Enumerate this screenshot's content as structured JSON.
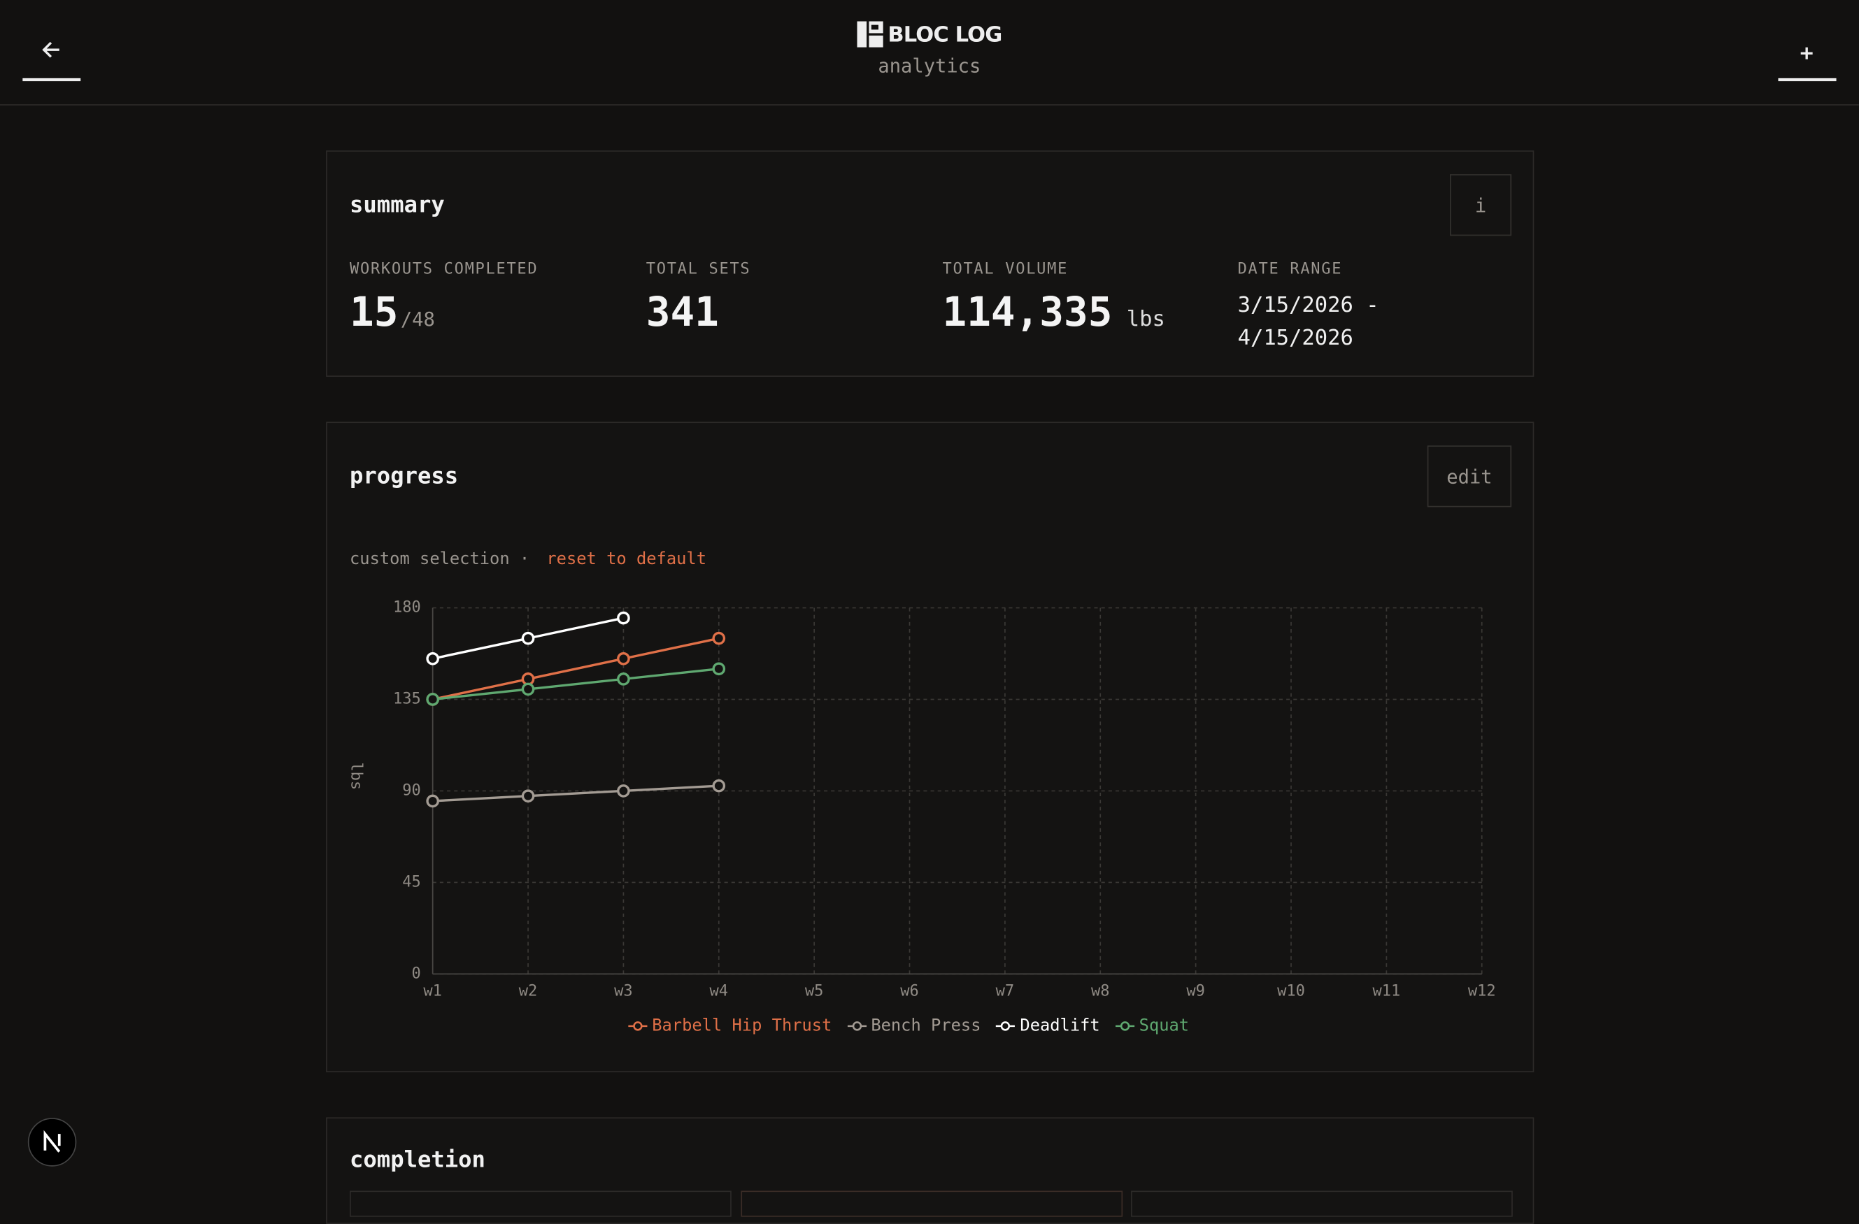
{
  "header": {
    "title": "BLOC LOG",
    "subtitle": "analytics"
  },
  "summary": {
    "title": "summary",
    "info": "i",
    "stats": [
      {
        "label": "WORKOUTS COMPLETED",
        "value": "15",
        "suffix": "/48"
      },
      {
        "label": "TOTAL SETS",
        "value": "341"
      },
      {
        "label": "TOTAL VOLUME",
        "value": "114,335",
        "suffix": "lbs"
      },
      {
        "label": "DATE RANGE",
        "value": "3/15/2026 - 4/15/2026"
      }
    ]
  },
  "progress": {
    "title": "progress",
    "edit": "edit",
    "selection": "custom selection ·",
    "reset": "reset to default"
  },
  "completion": {
    "title": "completion"
  },
  "chart_data": {
    "type": "line",
    "y_label": "lbs",
    "categories": [
      "w1",
      "w2",
      "w3",
      "w4",
      "w5",
      "w6",
      "w7",
      "w8",
      "w9",
      "w10",
      "w11",
      "w12"
    ],
    "ylim": [
      0,
      180
    ],
    "yticks": [
      0,
      45,
      90,
      135,
      180
    ],
    "grid": true,
    "series": [
      {
        "name": "Barbell Hip Thrust",
        "color": "#e07048",
        "values": [
          135,
          145,
          155,
          165,
          null,
          null,
          null,
          null,
          null,
          null,
          null,
          null
        ]
      },
      {
        "name": "Bench Press",
        "color": "#a39b93",
        "values": [
          85,
          87.5,
          90,
          92.5,
          null,
          null,
          null,
          null,
          null,
          null,
          null,
          null
        ]
      },
      {
        "name": "Deadlift",
        "color": "#ffffff",
        "values": [
          155,
          165,
          175,
          null,
          null,
          null,
          null,
          null,
          null,
          null,
          null,
          null
        ]
      },
      {
        "name": "Squat",
        "color": "#5fa870",
        "values": [
          135,
          140,
          145,
          150,
          null,
          null,
          null,
          null,
          null,
          null,
          null,
          null
        ]
      }
    ]
  }
}
